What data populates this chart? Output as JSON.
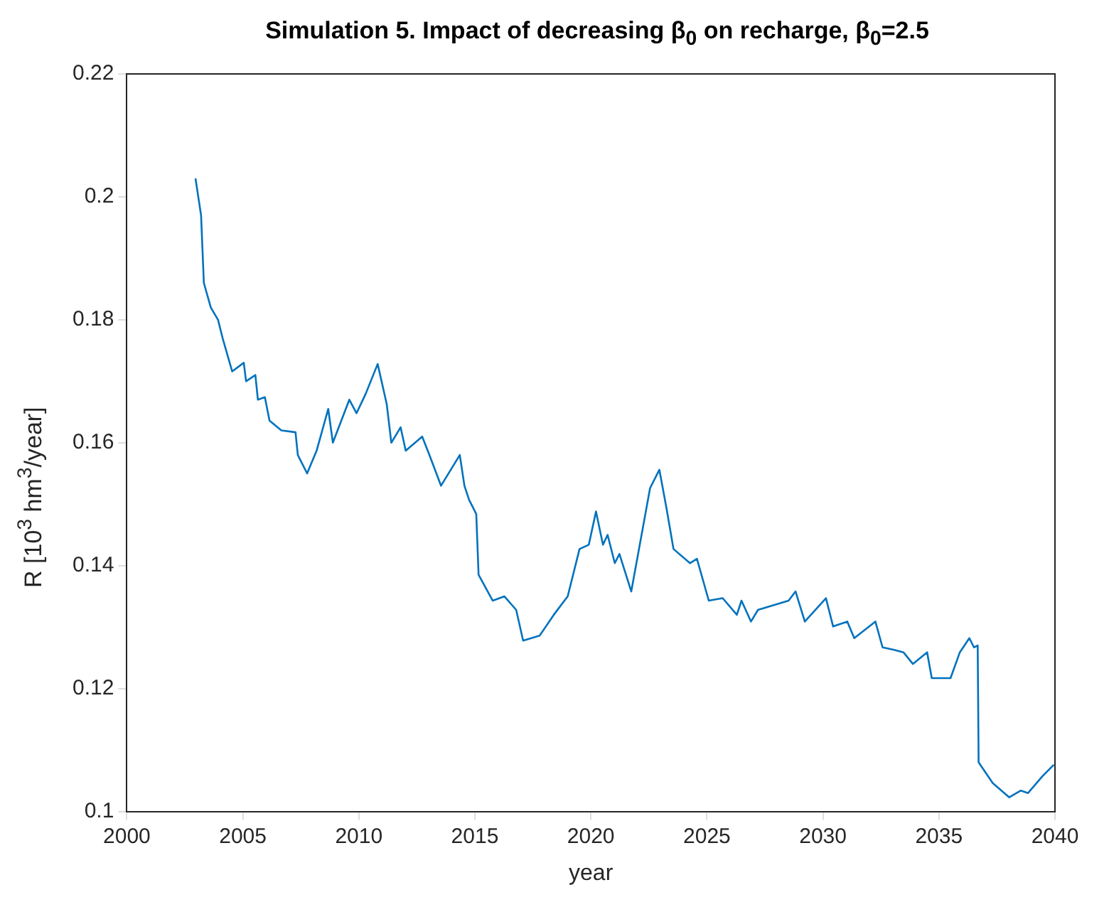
{
  "chart_data": {
    "type": "line",
    "title": "Simulation 5. Impact of decreasing β$_{0}$ on recharge, β$_{0}$=2.5",
    "xlabel": "year",
    "ylabel": "R [10$^{3}$ hm$^{3}$/year]",
    "x": [
      2002.96,
      2003.2,
      2003.32,
      2003.62,
      2003.93,
      2004.13,
      2004.54,
      2005.04,
      2005.14,
      2005.54,
      2005.65,
      2005.95,
      2006.15,
      2006.66,
      2007.27,
      2007.37,
      2007.77,
      2008.18,
      2008.68,
      2008.88,
      2009.59,
      2009.9,
      2010.3,
      2010.81,
      2011.2,
      2011.4,
      2011.8,
      2012.02,
      2012.73,
      2013.04,
      2013.54,
      2014.35,
      2014.55,
      2014.75,
      2015.06,
      2015.16,
      2015.77,
      2016.27,
      2016.78,
      2017.08,
      2017.79,
      2018.4,
      2019.0,
      2019.51,
      2019.91,
      2020.22,
      2020.52,
      2020.72,
      2021.03,
      2021.23,
      2021.74,
      2022.55,
      2022.95,
      2023.25,
      2023.56,
      2024.27,
      2024.57,
      2025.08,
      2025.68,
      2026.29,
      2026.49,
      2026.9,
      2027.2,
      2028.52,
      2028.82,
      2029.22,
      2030.13,
      2030.44,
      2031.05,
      2031.35,
      2032.26,
      2032.57,
      2033.07,
      2033.47,
      2033.88,
      2034.49,
      2034.69,
      2035.5,
      2035.9,
      2036.31,
      2036.51,
      2036.67,
      2036.71,
      2037.32,
      2038.03,
      2038.53,
      2038.84,
      2039.45,
      2039.95
    ],
    "series": [
      {
        "color": "#0072bd",
        "values": [
          0.203,
          0.197,
          0.186,
          0.182,
          0.18,
          0.177,
          0.1716,
          0.173,
          0.17,
          0.171,
          0.167,
          0.1674,
          0.1636,
          0.162,
          0.1617,
          0.158,
          0.155,
          0.1587,
          0.1655,
          0.16,
          0.167,
          0.1648,
          0.168,
          0.1728,
          0.1663,
          0.16,
          0.1625,
          0.1587,
          0.161,
          0.158,
          0.153,
          0.158,
          0.153,
          0.1507,
          0.1484,
          0.1385,
          0.1343,
          0.135,
          0.1328,
          0.1278,
          0.1286,
          0.132,
          0.135,
          0.1427,
          0.1434,
          0.1488,
          0.1434,
          0.145,
          0.1404,
          0.1419,
          0.1358,
          0.1526,
          0.1556,
          0.1495,
          0.1427,
          0.1404,
          0.1411,
          0.1343,
          0.1347,
          0.132,
          0.1343,
          0.1309,
          0.1328,
          0.1343,
          0.1358,
          0.1309,
          0.1347,
          0.1301,
          0.1309,
          0.1282,
          0.1309,
          0.1267,
          0.1263,
          0.1259,
          0.124,
          0.1259,
          0.1217,
          0.1217,
          0.1259,
          0.1282,
          0.1267,
          0.127,
          0.108,
          0.1046,
          0.1023,
          0.1034,
          0.103,
          0.1057,
          0.1076
        ]
      }
    ],
    "xlim": [
      2000,
      2040
    ],
    "xticks": [
      2000,
      2005,
      2010,
      2015,
      2020,
      2025,
      2030,
      2035,
      2040
    ],
    "ylim": [
      0.1,
      0.22
    ],
    "yticks": [
      0.1,
      0.12,
      0.14,
      0.16,
      0.18,
      0.2,
      0.22
    ],
    "grid": false,
    "legend": false,
    "marker": "none",
    "line_style": "solid"
  }
}
